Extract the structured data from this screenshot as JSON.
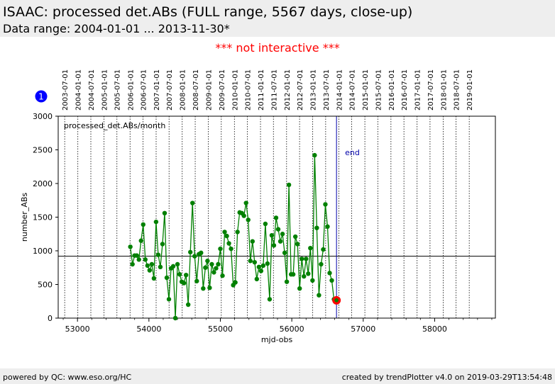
{
  "header": {
    "title": "ISAAC: processed det.ABs (FULL range, 5567 days, close-up)",
    "subtitle": "Data range: 2004-01-01 ... 2013-11-30*"
  },
  "notice": "*** not interactive ***",
  "badge": "1",
  "footer": {
    "left": "powered by QC: www.eso.org/HC",
    "right": "created by trendPlotter v4.0 on 2019-03-29T13:54:48"
  },
  "colors": {
    "series": "#008000",
    "marker": "#ff0000",
    "end_line": "#0000aa",
    "badge": "#0000ff",
    "notice": "#ff0000"
  },
  "chart_data": {
    "type": "scatter",
    "title": "processed_det.ABs/month",
    "xlabel": "mjd-obs",
    "ylabel": "number_ABs",
    "xlim": [
      52730,
      58850
    ],
    "ylim": [
      0,
      3000
    ],
    "x_ticks": [
      53000,
      54000,
      55000,
      56000,
      57000,
      58000
    ],
    "y_ticks": [
      0,
      500,
      1000,
      1500,
      2000,
      2500,
      3000
    ],
    "grid": "vertical dotted lines at date labels",
    "reference_line": 920,
    "end_marker": {
      "x": 56626,
      "label": "end"
    },
    "last_point": {
      "x": 56626,
      "y": 265
    },
    "date_labels": [
      {
        "x": 52821,
        "label": "2003-07-01"
      },
      {
        "x": 53005,
        "label": "2004-01-01"
      },
      {
        "x": 53187,
        "label": "2004-07-01"
      },
      {
        "x": 53371,
        "label": "2005-01-01"
      },
      {
        "x": 53552,
        "label": "2005-07-01"
      },
      {
        "x": 53736,
        "label": "2006-01-01"
      },
      {
        "x": 53917,
        "label": "2006-07-01"
      },
      {
        "x": 54101,
        "label": "2007-01-01"
      },
      {
        "x": 54282,
        "label": "2007-07-01"
      },
      {
        "x": 54466,
        "label": "2008-01-01"
      },
      {
        "x": 54648,
        "label": "2008-07-01"
      },
      {
        "x": 54832,
        "label": "2009-01-01"
      },
      {
        "x": 55013,
        "label": "2009-07-01"
      },
      {
        "x": 55197,
        "label": "2010-01-01"
      },
      {
        "x": 55378,
        "label": "2010-07-01"
      },
      {
        "x": 55562,
        "label": "2011-01-01"
      },
      {
        "x": 55743,
        "label": "2011-07-01"
      },
      {
        "x": 55927,
        "label": "2012-01-01"
      },
      {
        "x": 56109,
        "label": "2012-07-01"
      },
      {
        "x": 56293,
        "label": "2013-01-01"
      },
      {
        "x": 56474,
        "label": "2013-07-01"
      },
      {
        "x": 56658,
        "label": "2014-01-01"
      },
      {
        "x": 56839,
        "label": "2014-07-01"
      },
      {
        "x": 57023,
        "label": "2015-01-01"
      },
      {
        "x": 57204,
        "label": "2015-07-01"
      },
      {
        "x": 57388,
        "label": "2016-01-01"
      },
      {
        "x": 57570,
        "label": "2016-07-01"
      },
      {
        "x": 57754,
        "label": "2017-01-01"
      },
      {
        "x": 57935,
        "label": "2017-07-01"
      },
      {
        "x": 58119,
        "label": "2018-01-01"
      },
      {
        "x": 58300,
        "label": "2018-07-01"
      },
      {
        "x": 58484,
        "label": "2019-01-01"
      }
    ],
    "series": [
      {
        "x": [
          53740,
          53770,
          53800,
          53830,
          53860,
          53890,
          53920,
          53950,
          53980,
          54010,
          54040,
          54070,
          54100,
          54130,
          54160,
          54190,
          54220,
          54250,
          54280,
          54310,
          54340,
          54370,
          54400,
          54430,
          54460,
          54490,
          54520,
          54550,
          54580,
          54610,
          54640,
          54670,
          54700,
          54730,
          54760,
          54790,
          54820,
          54850,
          54880,
          54910,
          54940,
          54970,
          55000,
          55030,
          55060,
          55090,
          55120,
          55150,
          55180,
          55210,
          55240,
          55270,
          55300,
          55330,
          55360,
          55390,
          55420,
          55450,
          55480,
          55510,
          55540,
          55570,
          55600,
          55630,
          55660,
          55690,
          55720,
          55750,
          55780,
          55810,
          55840,
          55870,
          55900,
          55930,
          55960,
          55990,
          56020,
          56050,
          56080,
          56110,
          56140,
          56170,
          56200,
          56230,
          56260,
          56290,
          56320,
          56350,
          56380,
          56410,
          56440,
          56470,
          56500,
          56530,
          56560,
          56590,
          56626
        ],
        "y": [
          1060,
          800,
          930,
          930,
          870,
          1150,
          1390,
          870,
          780,
          710,
          800,
          590,
          1430,
          940,
          760,
          1100,
          1560,
          600,
          280,
          740,
          770,
          0,
          800,
          650,
          540,
          520,
          640,
          200,
          980,
          1710,
          920,
          550,
          950,
          970,
          440,
          750,
          850,
          450,
          800,
          680,
          740,
          800,
          1030,
          630,
          1280,
          1220,
          1110,
          1030,
          490,
          530,
          1280,
          1570,
          1560,
          1520,
          1710,
          1460,
          850,
          1140,
          830,
          580,
          760,
          700,
          780,
          1400,
          810,
          280,
          1230,
          1080,
          1490,
          1320,
          1140,
          1250,
          970,
          540,
          1980,
          650,
          650,
          1210,
          1100,
          440,
          880,
          620,
          880,
          660,
          1040,
          560,
          2420,
          1340,
          340,
          800,
          1020,
          1690,
          1360,
          670,
          560,
          280,
          265
        ]
      }
    ]
  }
}
